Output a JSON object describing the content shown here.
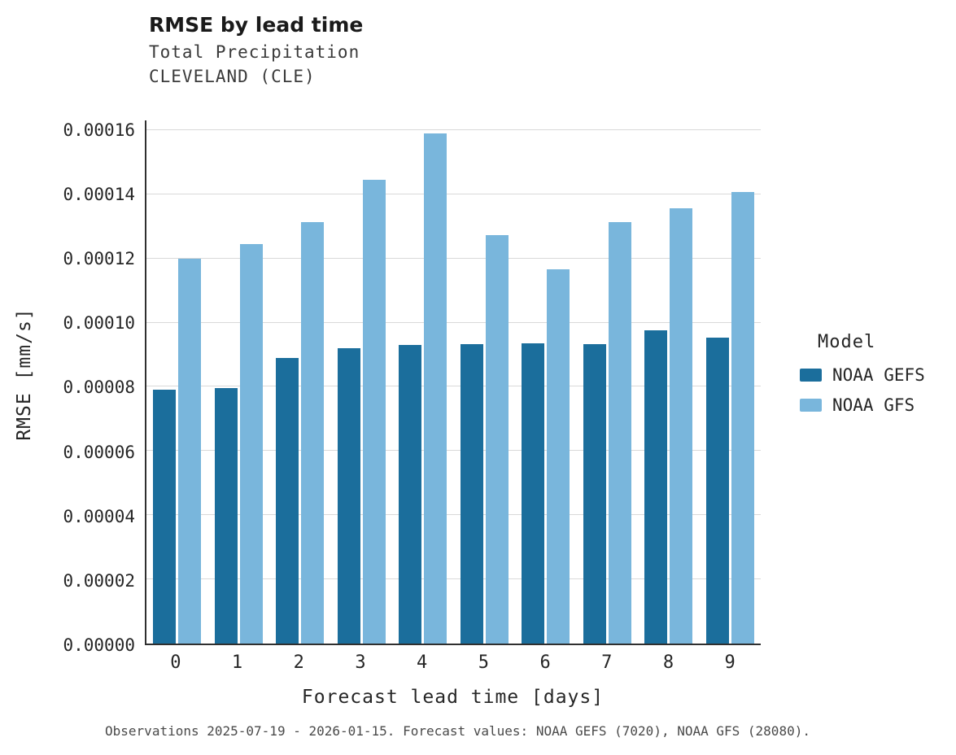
{
  "header": {
    "title": "RMSE by lead time",
    "subtitle1": "Total Precipitation",
    "subtitle2": "CLEVELAND (CLE)"
  },
  "footer": {
    "note": "Observations 2025-07-19 - 2026-01-15. Forecast values: NOAA GEFS (7020), NOAA GFS (28080)."
  },
  "chart_data": {
    "type": "bar",
    "title": "RMSE by lead time",
    "subtitle": [
      "Total Precipitation",
      "CLEVELAND (CLE)"
    ],
    "xlabel": "Forecast lead time [days]",
    "ylabel": "RMSE [mm/s]",
    "categories": [
      0,
      1,
      2,
      3,
      4,
      5,
      6,
      7,
      8,
      9
    ],
    "series": [
      {
        "name": "NOAA GEFS",
        "color": "#1b6e9c",
        "values": [
          7.9e-05,
          7.95e-05,
          8.9e-05,
          9.2e-05,
          9.3e-05,
          9.32e-05,
          9.36e-05,
          9.34e-05,
          9.75e-05,
          9.53e-05
        ]
      },
      {
        "name": "NOAA GFS",
        "color": "#79b6dc",
        "values": [
          0.00012,
          0.0001245,
          0.0001312,
          0.0001445,
          0.000159,
          0.0001272,
          0.0001167,
          0.0001313,
          0.0001356,
          0.0001407
        ]
      }
    ],
    "ylim": [
      0,
      0.00016
    ],
    "scale_max": 0.000163,
    "yticks": [
      0,
      2e-05,
      4e-05,
      6e-05,
      8e-05,
      0.0001,
      0.00012,
      0.00014,
      0.00016
    ],
    "ytick_decimals": 5,
    "grid": "horizontal",
    "legend_title": "Model",
    "legend_position": "right"
  }
}
